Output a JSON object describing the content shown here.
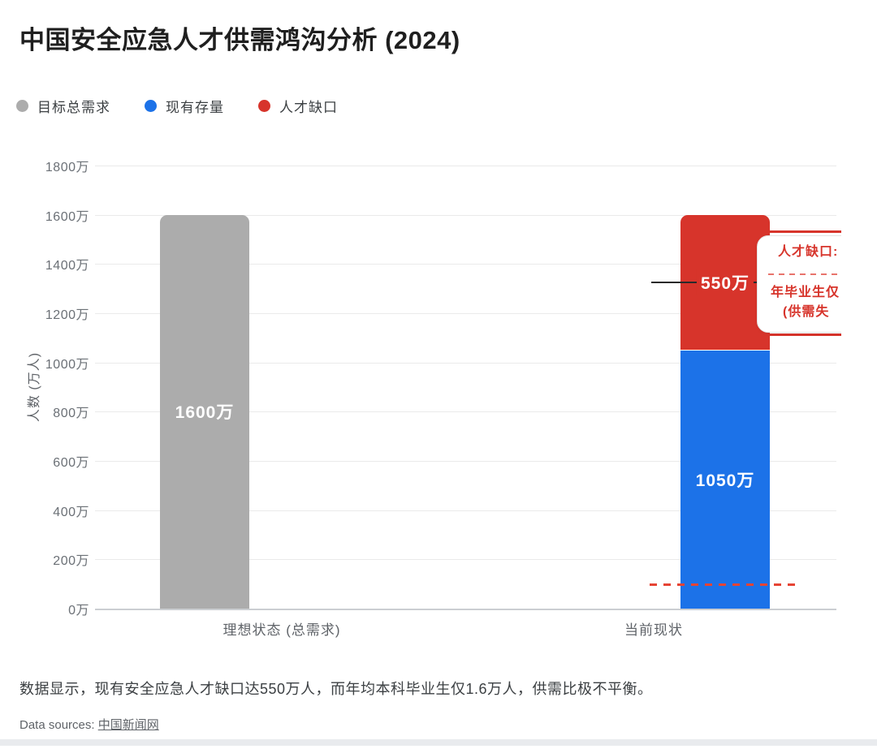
{
  "title": "中国安全应急人才供需鸿沟分析 (2024)",
  "legend": [
    {
      "label": "目标总需求",
      "color": "#acacac"
    },
    {
      "label": "现有存量",
      "color": "#1c72e8"
    },
    {
      "label": "人才缺口",
      "color": "#d7342b"
    }
  ],
  "colors": {
    "demand_gray": "#acacac",
    "stock_blue": "#1c72e8",
    "gap_red": "#d7342b",
    "reference_dash_red": "#e64434",
    "leader_line": "#2a2a2a"
  },
  "chart_data": {
    "type": "bar",
    "stacked": true,
    "title": "中国安全应急人才供需鸿沟分析 (2024)",
    "categories": [
      "理想状态 (总需求)",
      "当前现状"
    ],
    "series": [
      {
        "name": "目标总需求",
        "color": "#acacac",
        "values": [
          1600,
          null
        ],
        "value_labels": [
          "1600万",
          null
        ]
      },
      {
        "name": "现有存量",
        "color": "#1c72e8",
        "values": [
          null,
          1050
        ],
        "value_labels": [
          null,
          "1050万"
        ]
      },
      {
        "name": "人才缺口",
        "color": "#d7342b",
        "values": [
          null,
          550
        ],
        "value_labels": [
          null,
          "550万"
        ]
      }
    ],
    "ylabel": "人数 (万人)",
    "xlabel": "",
    "ylim": [
      0,
      1800
    ],
    "grid": true,
    "legend_position": "top-left",
    "yticks": [
      {
        "value": 0,
        "label": "0万"
      },
      {
        "value": 200,
        "label": "200万"
      },
      {
        "value": 400,
        "label": "400万"
      },
      {
        "value": 600,
        "label": "600万"
      },
      {
        "value": 800,
        "label": "800万"
      },
      {
        "value": 1000,
        "label": "1000万"
      },
      {
        "value": 1200,
        "label": "1200万"
      },
      {
        "value": 1400,
        "label": "1400万"
      },
      {
        "value": 1600,
        "label": "1600万"
      },
      {
        "value": 1800,
        "label": "1800万"
      }
    ],
    "reference_line": {
      "value": 100,
      "style": "dashed",
      "color": "#e64434"
    }
  },
  "annotation": {
    "title": "人才缺口:",
    "line2": "年毕业生仅",
    "line3": "(供需失"
  },
  "footnote": "数据显示，现有安全应急人才缺口达550万人，而年均本科毕业生仅1.6万人，供需比极不平衡。",
  "source": {
    "prefix": "Data sources: ",
    "link": "中国新闻网"
  }
}
